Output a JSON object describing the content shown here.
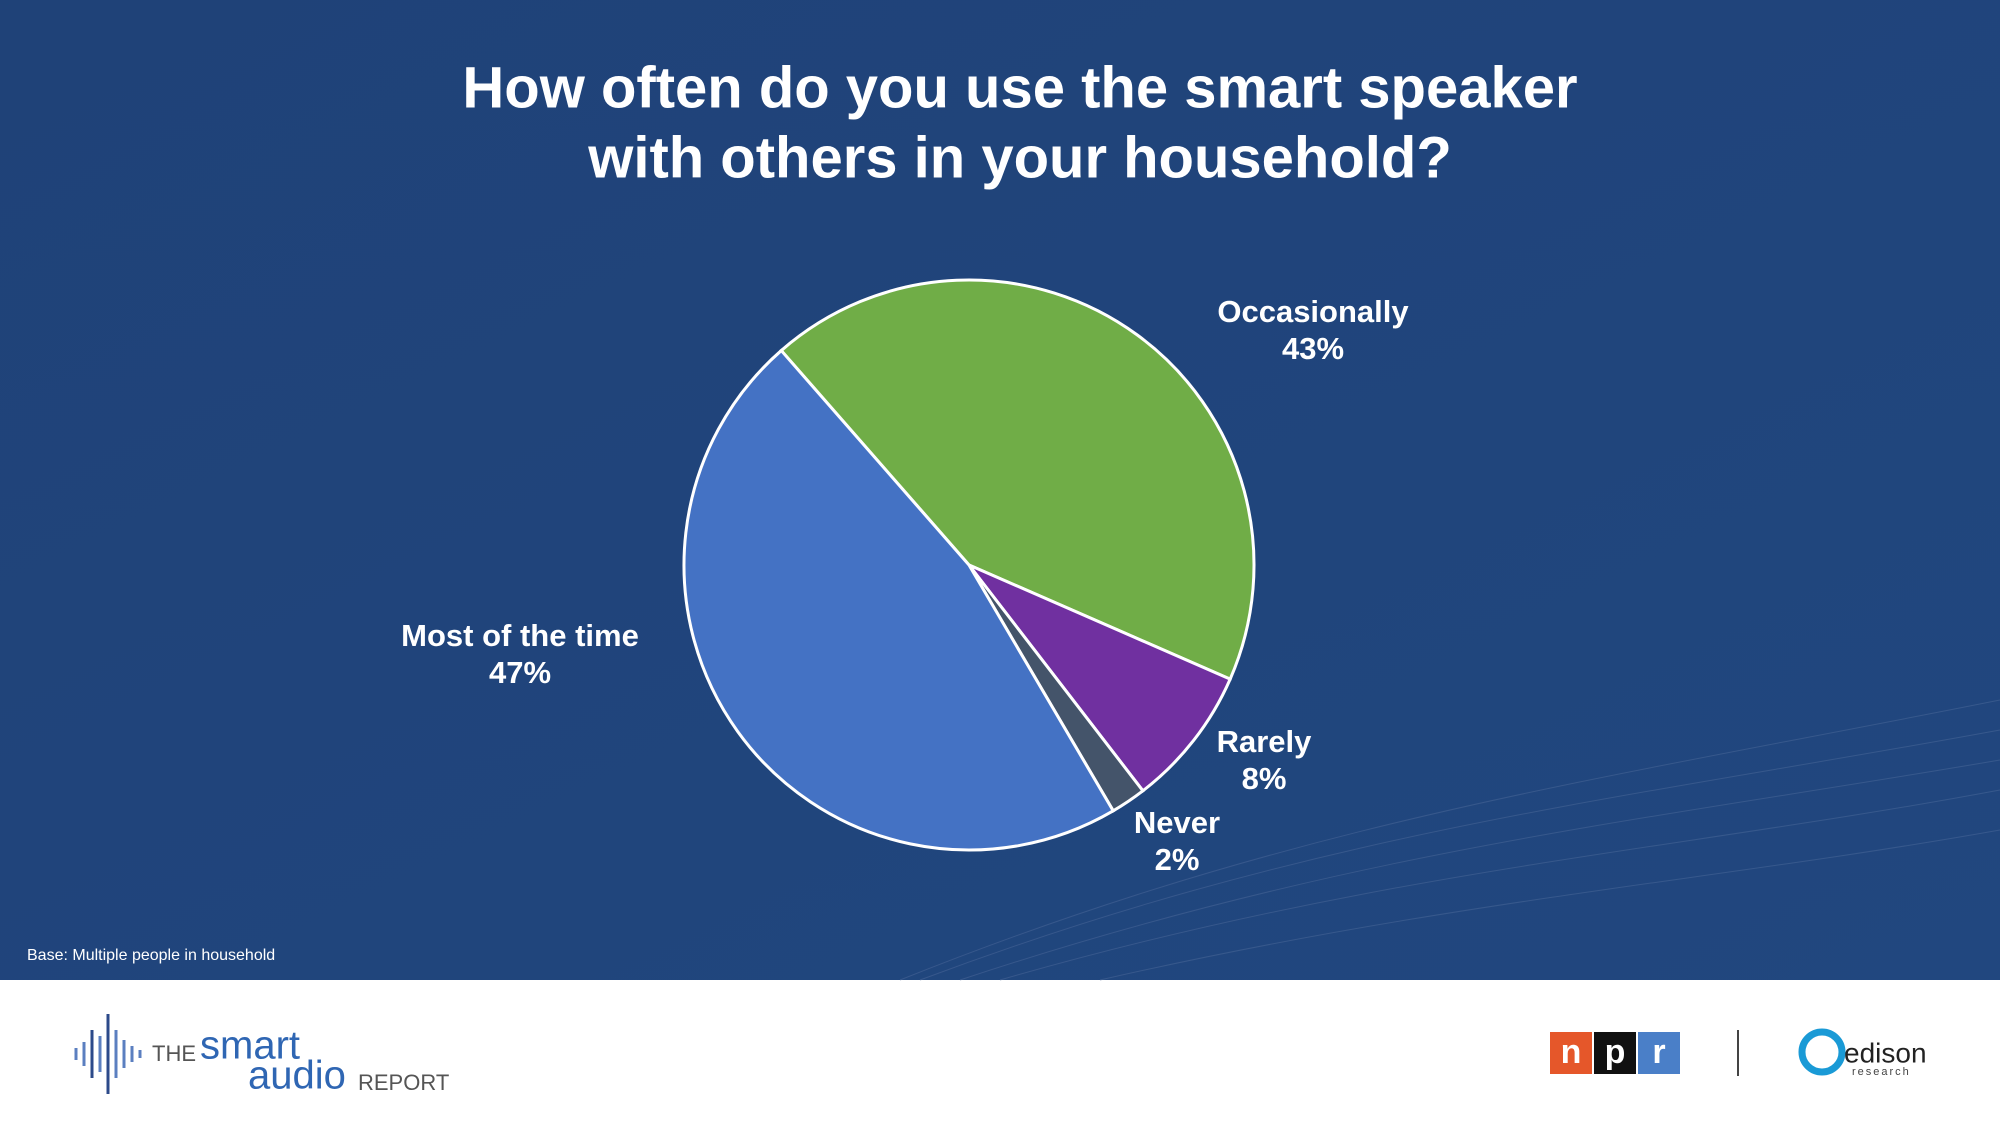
{
  "chart_data": {
    "type": "pie",
    "title": [
      "How often do you use the smart speaker",
      "with others in your household?"
    ],
    "categories": [
      "Occasionally",
      "Rarely",
      "Never",
      "Most of the time"
    ],
    "values": [
      43,
      8,
      2,
      47
    ],
    "value_labels": [
      "43%",
      "8%",
      "2%",
      "47%"
    ],
    "colors": [
      "#70ad47",
      "#7030a0",
      "#44546a",
      "#4472c4"
    ],
    "note": "Base: Multiple people in household"
  },
  "footer": {
    "logo_the": "THE",
    "logo_smart": "smart",
    "logo_audio": "audio",
    "logo_report": "REPORT",
    "npr": [
      "n",
      "p",
      "r"
    ],
    "edison": "edison",
    "research": "research"
  }
}
